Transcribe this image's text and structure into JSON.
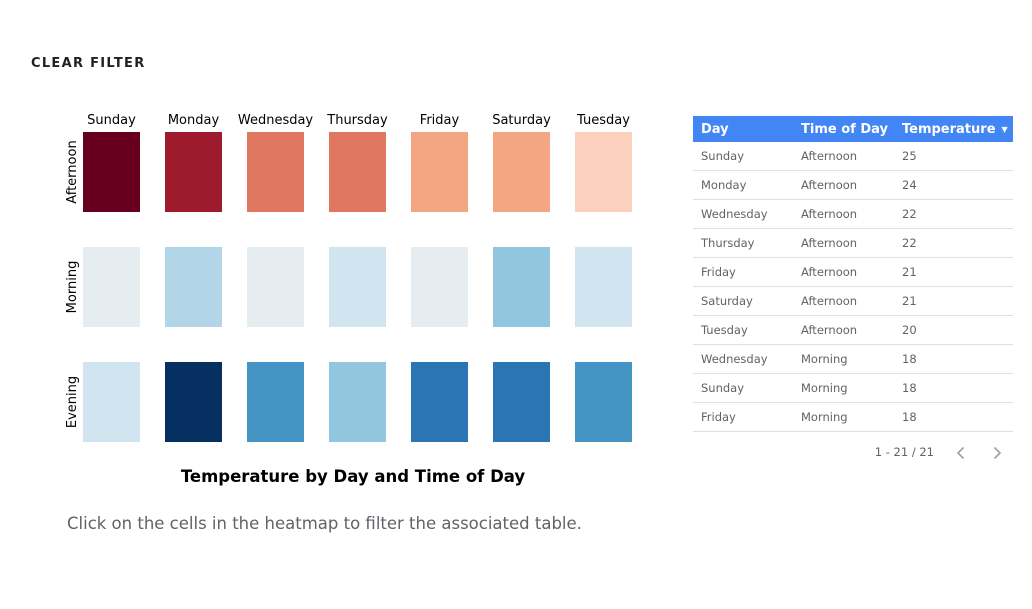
{
  "clear_filter_label": "CLEAR FILTER",
  "caption": "Click on the cells in the heatmap to filter the associated table.",
  "chart_data": {
    "type": "heatmap",
    "title": "Temperature by Day and Time of Day",
    "x_categories": [
      "Sunday",
      "Monday",
      "Wednesday",
      "Thursday",
      "Friday",
      "Saturday",
      "Tuesday"
    ],
    "y_categories": [
      "Afternoon",
      "Morning",
      "Evening"
    ],
    "values": [
      [
        25,
        24,
        22,
        22,
        21,
        21,
        20
      ],
      [
        18,
        16,
        18,
        17,
        18,
        15,
        17
      ],
      [
        17,
        11,
        14,
        15,
        13,
        13,
        14
      ]
    ],
    "color_scale": {
      "stops": [
        {
          "value": 11,
          "color": "#053061"
        },
        {
          "value": 12.5,
          "color": "#2166ac"
        },
        {
          "value": 14,
          "color": "#4393c3"
        },
        {
          "value": 15,
          "color": "#92c5de"
        },
        {
          "value": 17,
          "color": "#d1e5f0"
        },
        {
          "value": 18,
          "color": "#e5edf0"
        },
        {
          "value": 20,
          "color": "#fbd0bd"
        },
        {
          "value": 21,
          "color": "#f4a582"
        },
        {
          "value": 22,
          "color": "#e07761"
        },
        {
          "value": 24,
          "color": "#9e1a2d"
        },
        {
          "value": 25,
          "color": "#67001f"
        }
      ]
    }
  },
  "table": {
    "header_color": "#4285f4",
    "columns": [
      "Day",
      "Time of Day",
      "Temperature"
    ],
    "rows": [
      [
        "Sunday",
        "Afternoon",
        "25"
      ],
      [
        "Monday",
        "Afternoon",
        "24"
      ],
      [
        "Wednesday",
        "Afternoon",
        "22"
      ],
      [
        "Thursday",
        "Afternoon",
        "22"
      ],
      [
        "Friday",
        "Afternoon",
        "21"
      ],
      [
        "Saturday",
        "Afternoon",
        "21"
      ],
      [
        "Tuesday",
        "Afternoon",
        "20"
      ],
      [
        "Wednesday",
        "Morning",
        "18"
      ],
      [
        "Sunday",
        "Morning",
        "18"
      ],
      [
        "Friday",
        "Morning",
        "18"
      ]
    ],
    "sort_icon": "caret-down-icon",
    "pagination": "1 - 21 / 21",
    "prev_icon": "chevron-left-icon",
    "next_icon": "chevron-right-icon"
  }
}
